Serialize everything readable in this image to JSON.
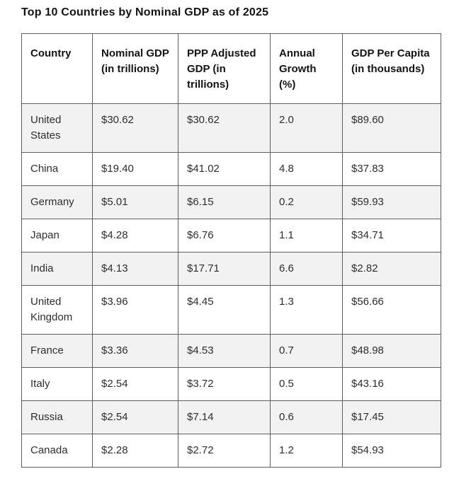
{
  "chart_data": {
    "type": "table",
    "title": "Top 10 Countries by Nominal GDP as of 2025",
    "columns": [
      "Country",
      "Nominal GDP (in trillions)",
      "PPP Adjusted GDP (in trillions)",
      "Annual Growth (%)",
      "GDP Per Capita (in thousands)"
    ],
    "rows": [
      [
        "United States",
        "$30.62",
        "$30.62",
        "2.0",
        "$89.60"
      ],
      [
        "China",
        "$19.40",
        "$41.02",
        "4.8",
        "$37.83"
      ],
      [
        "Germany",
        "$5.01",
        "$6.15",
        "0.2",
        "$59.93"
      ],
      [
        "Japan",
        "$4.28",
        "$6.76",
        "1.1",
        "$34.71"
      ],
      [
        "India",
        "$4.13",
        "$17.71",
        "6.6",
        "$2.82"
      ],
      [
        "United Kingdom",
        "$3.96",
        "$4.45",
        "1.3",
        "$56.66"
      ],
      [
        "France",
        "$3.36",
        "$4.53",
        "0.7",
        "$48.98"
      ],
      [
        "Italy",
        "$2.54",
        "$3.72",
        "0.5",
        "$43.16"
      ],
      [
        "Russia",
        "$2.54",
        "$7.14",
        "0.6",
        "$17.45"
      ],
      [
        "Canada",
        "$2.28",
        "$2.72",
        "1.2",
        "$54.93"
      ]
    ],
    "layout": {
      "striped_rows": true,
      "stripe_color": "#f2f2f2",
      "border_outer_color": "#3f3f3f",
      "border_inner_color": "#5e5e5e",
      "header_text_color": "#141414",
      "cell_text_color": "#2e2e2e",
      "background": "#ffffff"
    }
  }
}
